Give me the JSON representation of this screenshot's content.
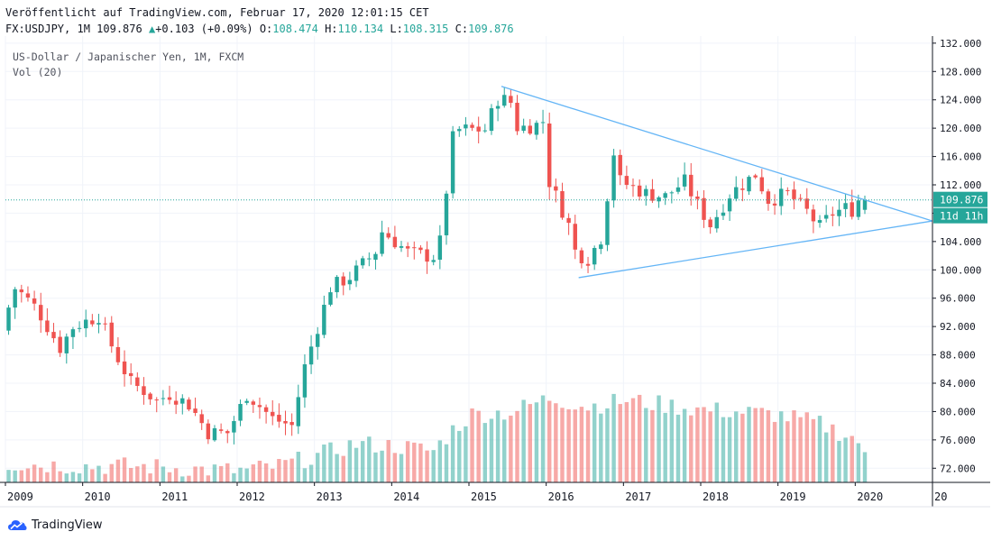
{
  "header": {
    "published": "Veröffentlicht auf TradingView.com, Februar 17, 2020 12:01:15 CET",
    "symbol_line": "FX:USDJPY, 1M",
    "last": "109.876",
    "arrow": "▲",
    "change": "+0.103 (+0.09%)",
    "o_label": "O:",
    "o": "108.474",
    "h_label": "H:",
    "h": "110.134",
    "l_label": "L:",
    "l": "108.315",
    "c_label": "C:",
    "c": "109.876"
  },
  "legend": {
    "pair_name": "US-Dollar / Japanischer Yen, 1M, FXCM",
    "volume": "Vol (20)"
  },
  "footer": {
    "brand": "TradingView"
  },
  "colors": {
    "up": "#26a69a",
    "down": "#ef5350",
    "vol_up": "#26a69a",
    "vol_down": "#ef5350",
    "trendline": "#64b5f6",
    "price_line": "#26a69a",
    "countdown_bg": "#26a69a",
    "grid": "#f0f3fa",
    "axis": "#131722"
  },
  "chart_data": {
    "type": "candlestick",
    "y_axis": {
      "min": 70,
      "max": 133,
      "ticks": [
        "132.000",
        "128.000",
        "124.000",
        "120.000",
        "116.000",
        "112.000",
        "108.000",
        "104.000",
        "100.000",
        "96.000",
        "92.000",
        "88.000",
        "84.000",
        "80.000",
        "76.000",
        "72.000"
      ],
      "tick_values": [
        132,
        128,
        124,
        120,
        116,
        112,
        108,
        104,
        100,
        96,
        92,
        88,
        84,
        80,
        76,
        72
      ],
      "position": "right"
    },
    "x_axis": {
      "labels": [
        "2009",
        "2010",
        "2011",
        "2012",
        "2013",
        "2014",
        "2015",
        "2016",
        "2017",
        "2018",
        "2019",
        "2020",
        "20"
      ],
      "label_times": [
        2009.0,
        2010.0,
        2011.0,
        2012.0,
        2013.0,
        2014.0,
        2015.0,
        2016.0,
        2017.0,
        2018.0,
        2019.0,
        2020.0,
        2021.0
      ],
      "start": 2009.0,
      "end": 2021.0
    },
    "current_price": {
      "label": "109.876",
      "value": 109.876,
      "countdown": "11d 11h"
    },
    "volume_axis_max": 100,
    "anchors": [
      [
        2009.0,
        92.0
      ],
      [
        2009.17,
        97.5
      ],
      [
        2009.45,
        94.5
      ],
      [
        2009.75,
        89.0
      ],
      [
        2009.92,
        92.0
      ],
      [
        2010.25,
        93.5
      ],
      [
        2010.45,
        88.5
      ],
      [
        2010.67,
        84.0
      ],
      [
        2010.83,
        83.0
      ],
      [
        2011.0,
        81.5
      ],
      [
        2011.17,
        82.5
      ],
      [
        2011.42,
        81.0
      ],
      [
        2011.67,
        77.0
      ],
      [
        2011.92,
        77.0
      ],
      [
        2012.17,
        82.5
      ],
      [
        2012.5,
        79.0
      ],
      [
        2012.75,
        78.0
      ],
      [
        2012.92,
        86.5
      ],
      [
        2013.25,
        97.5
      ],
      [
        2013.5,
        99.0
      ],
      [
        2013.83,
        102.5
      ],
      [
        2013.92,
        105.5
      ],
      [
        2014.25,
        102.5
      ],
      [
        2014.58,
        101.8
      ],
      [
        2014.67,
        104.0
      ],
      [
        2014.83,
        118.5
      ],
      [
        2014.92,
        119.8
      ],
      [
        2015.25,
        119.8
      ],
      [
        2015.42,
        124.2
      ],
      [
        2015.58,
        123.8
      ],
      [
        2015.67,
        120.0
      ],
      [
        2015.92,
        120.5
      ],
      [
        2016.0,
        121.0
      ],
      [
        2016.08,
        112.5
      ],
      [
        2016.33,
        106.5
      ],
      [
        2016.42,
        102.5
      ],
      [
        2016.58,
        101.5
      ],
      [
        2016.75,
        104.5
      ],
      [
        2016.92,
        116.8
      ],
      [
        2017.0,
        112.5
      ],
      [
        2017.33,
        110.8
      ],
      [
        2017.58,
        110.3
      ],
      [
        2017.83,
        112.5
      ],
      [
        2018.0,
        109.2
      ],
      [
        2018.17,
        106.3
      ],
      [
        2018.42,
        110.7
      ],
      [
        2018.75,
        113.5
      ],
      [
        2018.92,
        109.8
      ],
      [
        2019.17,
        110.8
      ],
      [
        2019.42,
        108.2
      ],
      [
        2019.58,
        106.0
      ],
      [
        2019.75,
        108.0
      ],
      [
        2019.92,
        108.7
      ],
      [
        2020.0,
        108.5
      ],
      [
        2020.08,
        109.876
      ]
    ],
    "volume_anchors": [
      [
        2009.0,
        16
      ],
      [
        2009.5,
        15
      ],
      [
        2010.0,
        14
      ],
      [
        2010.5,
        14
      ],
      [
        2011.0,
        13
      ],
      [
        2011.5,
        11
      ],
      [
        2012.0,
        10
      ],
      [
        2012.5,
        14
      ],
      [
        2013.0,
        23
      ],
      [
        2013.5,
        33
      ],
      [
        2014.0,
        31
      ],
      [
        2014.5,
        27
      ],
      [
        2014.75,
        45
      ],
      [
        2015.0,
        58
      ],
      [
        2015.5,
        60
      ],
      [
        2016.0,
        72
      ],
      [
        2016.5,
        65
      ],
      [
        2017.0,
        70
      ],
      [
        2017.5,
        66
      ],
      [
        2018.0,
        62
      ],
      [
        2018.5,
        60
      ],
      [
        2018.92,
        58
      ],
      [
        2019.5,
        50
      ],
      [
        2020.0,
        36
      ],
      [
        2020.08,
        20
      ]
    ],
    "trendlines": [
      {
        "name": "upper",
        "points": [
          [
            2015.42,
            125.9
          ],
          [
            2021.0,
            106.9
          ]
        ]
      },
      {
        "name": "lower",
        "points": [
          [
            2016.42,
            98.9
          ],
          [
            2021.0,
            106.9
          ]
        ]
      }
    ]
  }
}
